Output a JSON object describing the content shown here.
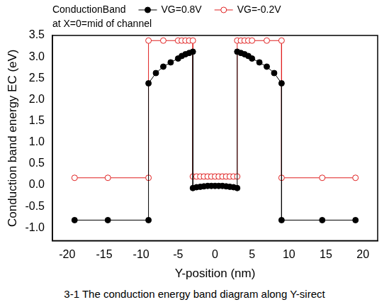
{
  "chart_data": {
    "type": "line",
    "legend_title": "ConductionBand",
    "annotations": [
      "at X=0=mid of channel"
    ],
    "x_label": "Y-position (nm)",
    "y_label": "Conduction band energy EC (eV)",
    "caption": "3-1 The conduction energy band diagram along Y-sirect",
    "xlim": [
      -22,
      22
    ],
    "xticks": [
      -20,
      -15,
      -10,
      -5,
      0,
      5,
      10,
      15,
      20
    ],
    "ylim": [
      -1.3,
      3.5
    ],
    "yticks": [
      {
        "value": -1.0,
        "label": "-1.0"
      },
      -0.5,
      {
        "value": 0.0,
        "label": "0.0"
      },
      0.5,
      {
        "value": 1.0,
        "label": "1.0"
      },
      1.5,
      {
        "value": 2.0,
        "label": "2.0"
      },
      2.5,
      {
        "value": 3.0,
        "label": "3.0"
      },
      3.5
    ],
    "grid": false,
    "legend": "top",
    "series": [
      {
        "name": "VG=0.8V",
        "color": "#000000",
        "marker": "circle",
        "line_style": "solid",
        "x": [
          -19,
          -14.5,
          -9,
          -9,
          -8,
          -7,
          -6,
          -5,
          -4.5,
          -4,
          -3.5,
          -3,
          -3,
          -2.5,
          -2,
          -1.5,
          -1,
          -0.5,
          0,
          0.5,
          1,
          1.5,
          2,
          2.5,
          3,
          3,
          3.5,
          4,
          4.5,
          5,
          6,
          7,
          8,
          9,
          9,
          14.5,
          19
        ],
        "values": [
          -0.82,
          -0.82,
          -0.82,
          2.38,
          2.62,
          2.77,
          2.87,
          2.96,
          3.02,
          3.06,
          3.09,
          3.12,
          -0.07,
          -0.05,
          -0.04,
          -0.03,
          -0.02,
          -0.02,
          -0.02,
          -0.02,
          -0.02,
          -0.03,
          -0.04,
          -0.05,
          -0.07,
          3.12,
          3.09,
          3.06,
          3.02,
          2.96,
          2.87,
          2.77,
          2.62,
          2.38,
          -0.82,
          -0.82,
          -0.82
        ]
      },
      {
        "name": "VG=-0.2V",
        "color": "#e02020",
        "marker": "open_circle",
        "line_style": "solid",
        "x": [
          -19,
          -14.5,
          -9,
          -9,
          -7,
          -5,
          -4.5,
          -4,
          -3.5,
          -3,
          -3,
          -2.5,
          -2,
          -1.5,
          -1,
          -0.5,
          0,
          0.5,
          1,
          1.5,
          2,
          2.5,
          3,
          3,
          3.5,
          4,
          4.5,
          5,
          7,
          9,
          9,
          14.5,
          19
        ],
        "values": [
          0.17,
          0.17,
          0.17,
          3.38,
          3.38,
          3.38,
          3.38,
          3.38,
          3.38,
          3.38,
          0.2,
          0.2,
          0.2,
          0.2,
          0.2,
          0.2,
          0.2,
          0.2,
          0.2,
          0.2,
          0.2,
          0.2,
          0.2,
          3.38,
          3.38,
          3.38,
          3.38,
          3.38,
          3.38,
          3.38,
          0.17,
          0.17,
          0.17
        ]
      }
    ]
  }
}
